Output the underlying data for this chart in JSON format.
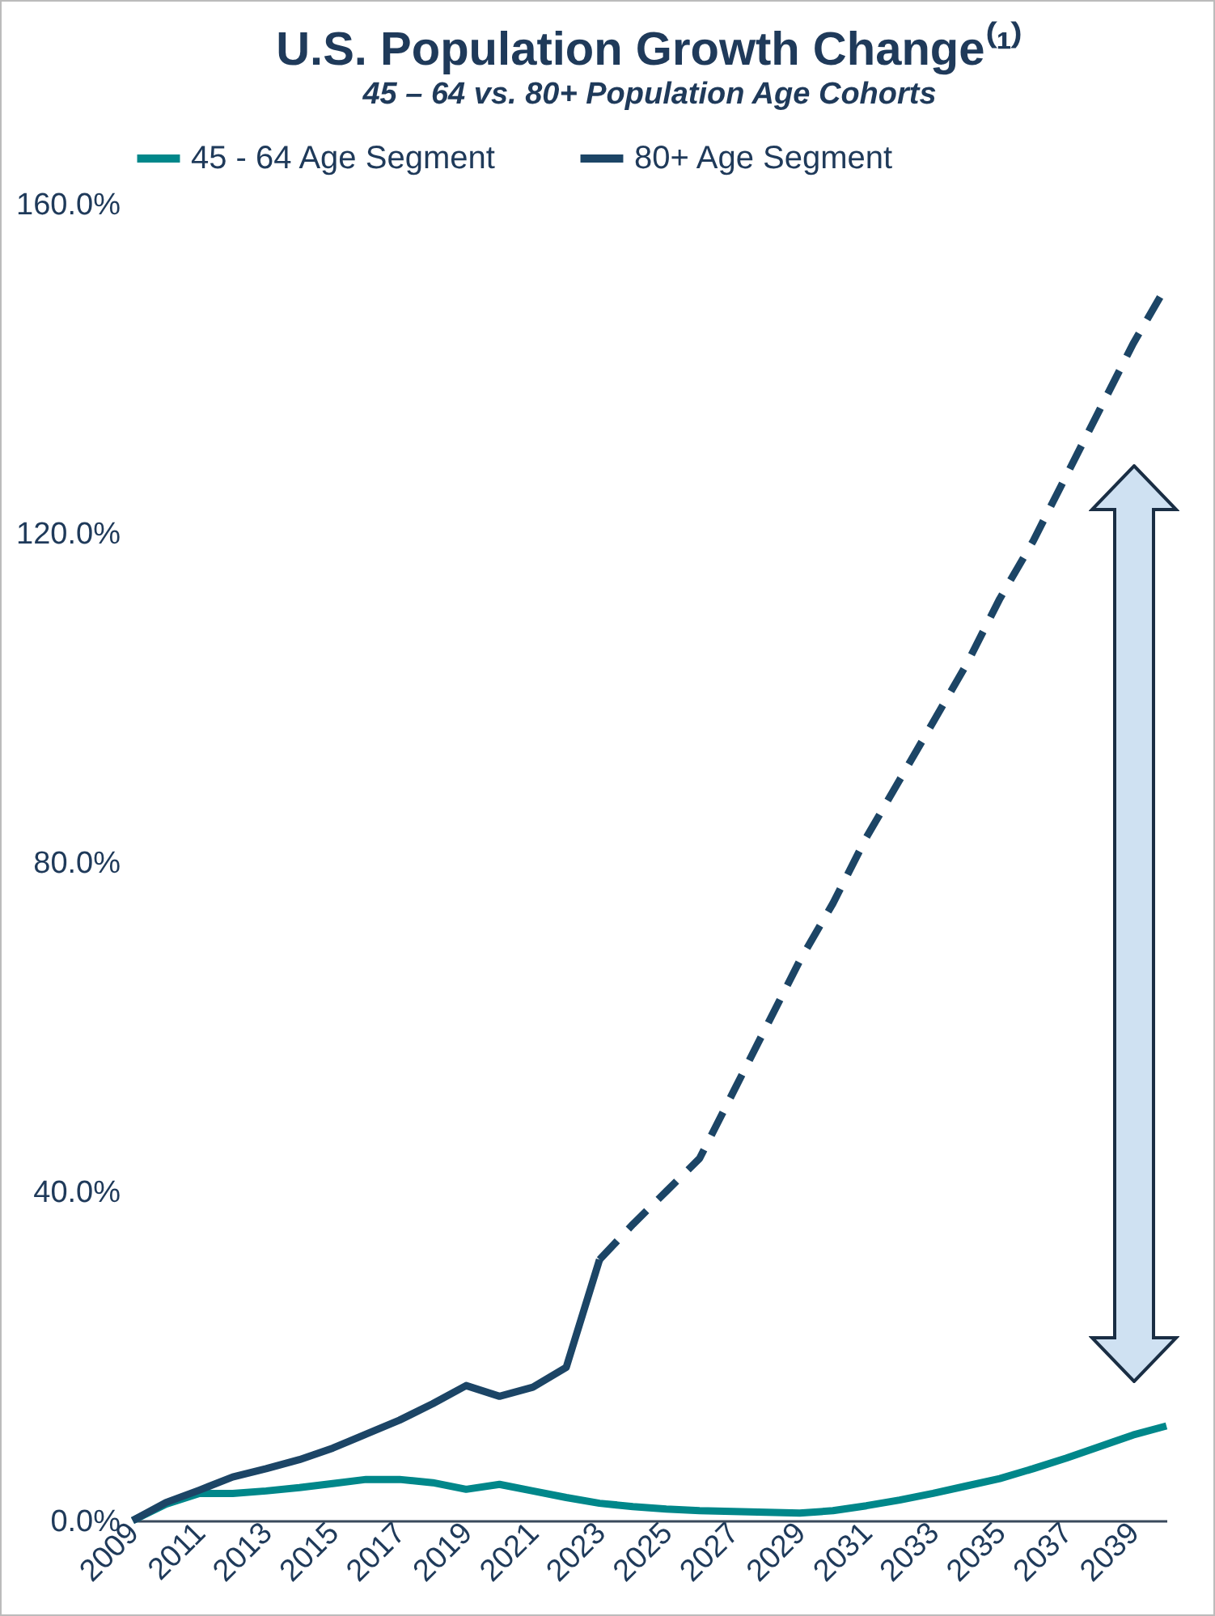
{
  "chart_data": {
    "type": "line",
    "title": "U.S. Population Growth Change⁽¹⁾",
    "subtitle": "45 – 64 vs. 80+ Population Age Cohorts",
    "xlim": [
      2009,
      2040
    ],
    "xticks": [
      2009,
      2011,
      2013,
      2015,
      2017,
      2019,
      2021,
      2023,
      2025,
      2027,
      2029,
      2031,
      2033,
      2035,
      2037,
      2039
    ],
    "ylim": [
      0,
      160
    ],
    "yticks": [
      {
        "value": 0,
        "label": "0.0%"
      },
      {
        "value": 40,
        "label": "40.0%"
      },
      {
        "value": 80,
        "label": "80.0%"
      },
      {
        "value": 120,
        "label": "120.0%"
      },
      {
        "value": 160,
        "label": "160.0%"
      }
    ],
    "legend": "top",
    "grid": false,
    "series": [
      {
        "name": "45 - 64 Age Segment",
        "color": "#00878a",
        "line_style": "solid",
        "x": [
          2009,
          2010,
          2011,
          2012,
          2013,
          2014,
          2015,
          2016,
          2017,
          2018,
          2019,
          2020,
          2021,
          2022,
          2023,
          2024,
          2025,
          2026,
          2027,
          2028,
          2029,
          2030,
          2031,
          2032,
          2033,
          2034,
          2035,
          2036,
          2037,
          2038,
          2039,
          2040
        ],
        "values": [
          0,
          2,
          3.3,
          3.3,
          3.6,
          4,
          4.5,
          5,
          5,
          4.6,
          3.8,
          4.4,
          3.6,
          2.8,
          2.1,
          1.7,
          1.4,
          1.2,
          1.1,
          1,
          0.9,
          1.2,
          1.8,
          2.5,
          3.3,
          4.2,
          5.1,
          6.3,
          7.6,
          9,
          10.4,
          11.5
        ]
      },
      {
        "name": "80+ Age Segment",
        "color": "#1c4566",
        "line_style": "solid",
        "x": [
          2009,
          2010,
          2011,
          2012,
          2013,
          2014,
          2015,
          2016,
          2017,
          2018,
          2019,
          2020,
          2021,
          2022,
          2023
        ],
        "values": [
          0,
          2.2,
          3.7,
          5.3,
          6.3,
          7.4,
          8.8,
          10.5,
          12.2,
          14.2,
          16.4,
          15.1,
          16.2,
          18.6,
          31.7
        ]
      },
      {
        "color": "#1c4566",
        "line_style": "dashed",
        "x": [
          2023,
          2024,
          2025,
          2026,
          2027,
          2028,
          2029,
          2030,
          2031,
          2032,
          2033,
          2034,
          2035,
          2036,
          2037,
          2038,
          2039,
          2040
        ],
        "values": [
          31.7,
          36,
          40,
          44,
          52,
          60,
          68,
          75,
          83,
          90,
          97,
          104,
          112,
          119,
          127,
          135,
          143,
          150
        ]
      }
    ]
  }
}
